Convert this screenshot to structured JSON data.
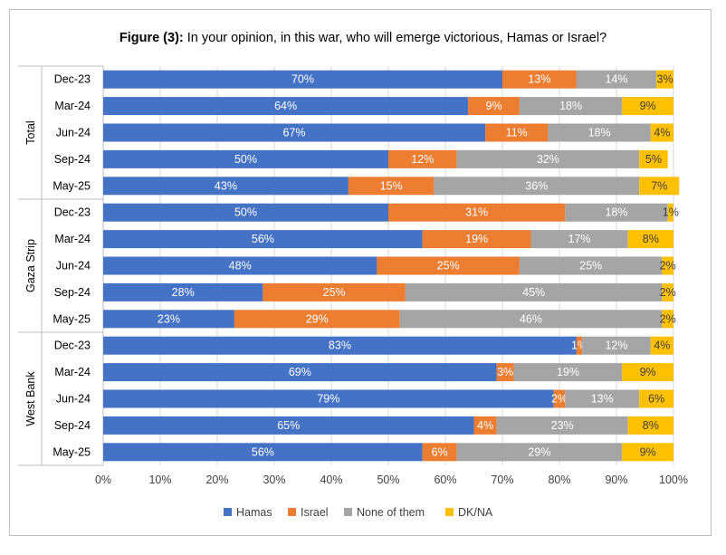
{
  "title": {
    "prefix": "Figure (3):",
    "text": " In your opinion, in this war, who will emerge victorious, Hamas or Israel?"
  },
  "chart_data": {
    "type": "bar",
    "orientation": "horizontal",
    "stacked": true,
    "x_ticks": [
      "0%",
      "10%",
      "20%",
      "30%",
      "40%",
      "50%",
      "60%",
      "70%",
      "80%",
      "90%",
      "100%"
    ],
    "xlim": [
      0,
      100
    ],
    "grid": true,
    "legend_position": "bottom",
    "series_names": [
      "Hamas",
      "Israel",
      "None of them",
      "DK/NA"
    ],
    "colors": [
      "#4472c4",
      "#ed7d31",
      "#a5a5a5",
      "#ffc000"
    ],
    "groups": [
      {
        "name": "Total",
        "rows": [
          {
            "label": "Dec-23",
            "values": [
              70,
              13,
              14,
              3
            ]
          },
          {
            "label": "Mar-24",
            "values": [
              64,
              9,
              18,
              9
            ]
          },
          {
            "label": "Jun-24",
            "values": [
              67,
              11,
              18,
              4
            ]
          },
          {
            "label": "Sep-24",
            "values": [
              50,
              12,
              32,
              5
            ]
          },
          {
            "label": "May-25",
            "values": [
              43,
              15,
              36,
              7
            ]
          }
        ]
      },
      {
        "name": "Gaza Strip",
        "rows": [
          {
            "label": "Dec-23",
            "values": [
              50,
              31,
              18,
              1
            ]
          },
          {
            "label": "Mar-24",
            "values": [
              56,
              19,
              17,
              8
            ]
          },
          {
            "label": "Jun-24",
            "values": [
              48,
              25,
              25,
              2
            ]
          },
          {
            "label": "Sep-24",
            "values": [
              28,
              25,
              45,
              2
            ]
          },
          {
            "label": "May-25",
            "values": [
              23,
              29,
              46,
              2
            ]
          }
        ]
      },
      {
        "name": "West Bank",
        "rows": [
          {
            "label": "Dec-23",
            "values": [
              83,
              1,
              12,
              4
            ]
          },
          {
            "label": "Mar-24",
            "values": [
              69,
              3,
              19,
              9
            ]
          },
          {
            "label": "Jun-24",
            "values": [
              79,
              2,
              13,
              6
            ]
          },
          {
            "label": "Sep-24",
            "values": [
              65,
              4,
              23,
              8
            ]
          },
          {
            "label": "May-25",
            "values": [
              56,
              6,
              29,
              9
            ]
          }
        ]
      }
    ]
  }
}
